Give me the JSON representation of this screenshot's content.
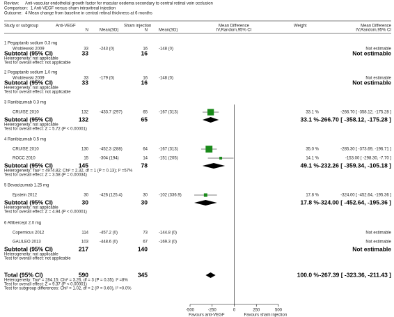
{
  "header": {
    "review": {
      "label": "Review:",
      "text": "Anti-vascular endothelial growth factor for macular oedema secondary to central retinal vein occlusion"
    },
    "comparison": {
      "label": "Comparison:",
      "text": "1 Anti-VEGF versus sham intravitreal injection"
    },
    "outcome": {
      "label": "Outcome:",
      "text": "4 Mean change from baseline in central retinal thickness at 6 months"
    }
  },
  "chart_data": {
    "type": "forest",
    "columns": {
      "study": "Study or subgroup",
      "group1": "Anti-VEGF",
      "group2": "Sham injection",
      "n": "N",
      "mean_sd": "Mean(SD)",
      "plot_title": "Mean Difference",
      "plot_method": "IV,Random,95% CI",
      "weight": "Weight",
      "effect_title": "Mean Difference",
      "effect_method": "IV,Random,95% CI"
    },
    "xlim": [
      -500,
      500
    ],
    "xticks": [
      -500,
      -250,
      0,
      250,
      500
    ],
    "favours_left": "Favours anti-VEGF",
    "favours_right": "Favours sham injection",
    "square_color": "#1a8a1a",
    "groups": [
      {
        "title": "1 Pegaptanib sodium 0.3 mg",
        "studies": [
          {
            "name": "Wroblewski 2009",
            "n1": 33,
            "mean_sd1": "-243 (0)",
            "n2": 16,
            "mean_sd2": "-148 (0)",
            "ci_label": "Not estimable"
          }
        ],
        "subtotal": {
          "label": "Subtotal (95% CI)",
          "n1": 33,
          "n2": 16,
          "ci_label": "Not estimable"
        },
        "heterogeneity": "Heterogeneity: not applicable",
        "overall_effect": "Test for overall effect: not applicable"
      },
      {
        "title": "2 Pegaptanib sodium 1.0 mg",
        "studies": [
          {
            "name": "Wroblewski 2009",
            "n1": 33,
            "mean_sd1": "-179 (0)",
            "n2": 16,
            "mean_sd2": "-148 (0)",
            "ci_label": "Not estimable"
          }
        ],
        "subtotal": {
          "label": "Subtotal (95% CI)",
          "n1": 33,
          "n2": 16,
          "ci_label": "Not estimable"
        },
        "heterogeneity": "Heterogeneity: not applicable",
        "overall_effect": "Test for overall effect: not applicable"
      },
      {
        "title": "3 Ranibizumab 0.3 mg",
        "studies": [
          {
            "name": "CRUISE 2010",
            "n1": 132,
            "mean_sd1": "-433.7 (297)",
            "n2": 65,
            "mean_sd2": "-167 (313)",
            "weight": 33.1,
            "weight_label": "33.1 %",
            "md": -266.7,
            "lo": -358.12,
            "hi": -175.28,
            "ci_label": "-266.70 [ -358.12, -175.28 ]"
          }
        ],
        "subtotal": {
          "label": "Subtotal (95% CI)",
          "n1": 132,
          "n2": 65,
          "weight": 33.1,
          "weight_label": "33.1 %",
          "md": -266.7,
          "lo": -358.12,
          "hi": -175.28,
          "ci_label": "-266.70 [ -358.12, -175.28 ]"
        },
        "heterogeneity": "Heterogeneity: not applicable",
        "overall_effect": "Test for overall effect: Z = 5.72 (P < 0.00001)"
      },
      {
        "title": "4 Ranibizumab 0.5 mg",
        "studies": [
          {
            "name": "CRUISE 2010",
            "n1": 130,
            "mean_sd1": "-452.3 (288)",
            "n2": 64,
            "mean_sd2": "-167 (313)",
            "weight": 35.0,
            "weight_label": "35.0 %",
            "md": -285.3,
            "lo": -373.69,
            "hi": -196.71,
            "ci_label": "-285.30 [ -373.69, -196.71 ]"
          },
          {
            "name": "ROCC 2010",
            "n1": 15,
            "mean_sd1": "-304 (194)",
            "n2": 14,
            "mean_sd2": "-151 (205)",
            "weight": 14.1,
            "weight_label": "14.1 %",
            "md": -153.0,
            "lo": -298.3,
            "hi": -7.7,
            "ci_label": "-153.00 [ -298.30, -7.70 ]"
          }
        ],
        "subtotal": {
          "label": "Subtotal (95% CI)",
          "n1": 145,
          "n2": 78,
          "weight": 49.1,
          "weight_label": "49.1 %",
          "md": -232.26,
          "lo": -359.34,
          "hi": -105.18,
          "ci_label": "-232.26 [ -359.34, -105.18 ]"
        },
        "heterogeneity": "Heterogeneity: Tau² = 4974.82; Chi² = 2.32, df = 1 (P = 0.13); I² =57%",
        "overall_effect": "Test for overall effect: Z = 3.58 (P = 0.00034)"
      },
      {
        "title": "5 Bevacizumab 1.25 mg",
        "studies": [
          {
            "name": "Epstein 2012",
            "n1": 30,
            "mean_sd1": "-426 (125.4)",
            "n2": 30,
            "mean_sd2": "-102 (336.9)",
            "weight": 17.8,
            "weight_label": "17.8 %",
            "md": -324.0,
            "lo": -452.64,
            "hi": -195.36,
            "ci_label": "-324.00 [ -452.64, -195.36 ]"
          }
        ],
        "subtotal": {
          "label": "Subtotal (95% CI)",
          "n1": 30,
          "n2": 30,
          "weight": 17.8,
          "weight_label": "17.8 %",
          "md": -324.0,
          "lo": -452.64,
          "hi": -195.36,
          "ci_label": "-324.00 [ -452.64, -195.36 ]"
        },
        "heterogeneity": "Heterogeneity: not applicable",
        "overall_effect": "Test for overall effect: Z = 4.94 (P < 0.00001)"
      },
      {
        "title": "6 Aflibercept 2.0 mg",
        "studies": [
          {
            "name": "Copernicus 2012",
            "n1": 114,
            "mean_sd1": "-457.2 (0)",
            "n2": 73,
            "mean_sd2": "-144.8 (0)",
            "ci_label": "Not estimable"
          },
          {
            "name": "GALILEO 2013",
            "n1": 103,
            "mean_sd1": "-448.6 (0)",
            "n2": 67,
            "mean_sd2": "-169.3 (0)",
            "ci_label": "Not estimable"
          }
        ],
        "subtotal": {
          "label": "Subtotal (95% CI)",
          "n1": 217,
          "n2": 140,
          "ci_label": "Not estimable"
        },
        "heterogeneity": "Heterogeneity: not applicable",
        "overall_effect": "Test for overall effect: not applicable"
      }
    ],
    "total": {
      "label": "Total (95% CI)",
      "n1": 590,
      "n2": 345,
      "weight": 100.0,
      "weight_label": "100.0 %",
      "md": -267.39,
      "lo": -323.36,
      "hi": -211.43,
      "ci_label": "-267.39 [ -323.36, -211.43 ]",
      "heterogeneity": "Heterogeneity: Tau² = 284.15; Chi² = 3.26, df = 3 (P = 0.35); I² =8%",
      "overall_effect": "Test for overall effect: Z = 9.37 (P < 0.00001)",
      "subgroup_differences": "Test for subgroup differences: Chi² = 1.02, df = 2 (P = 0.60), I² =0.0%"
    }
  }
}
